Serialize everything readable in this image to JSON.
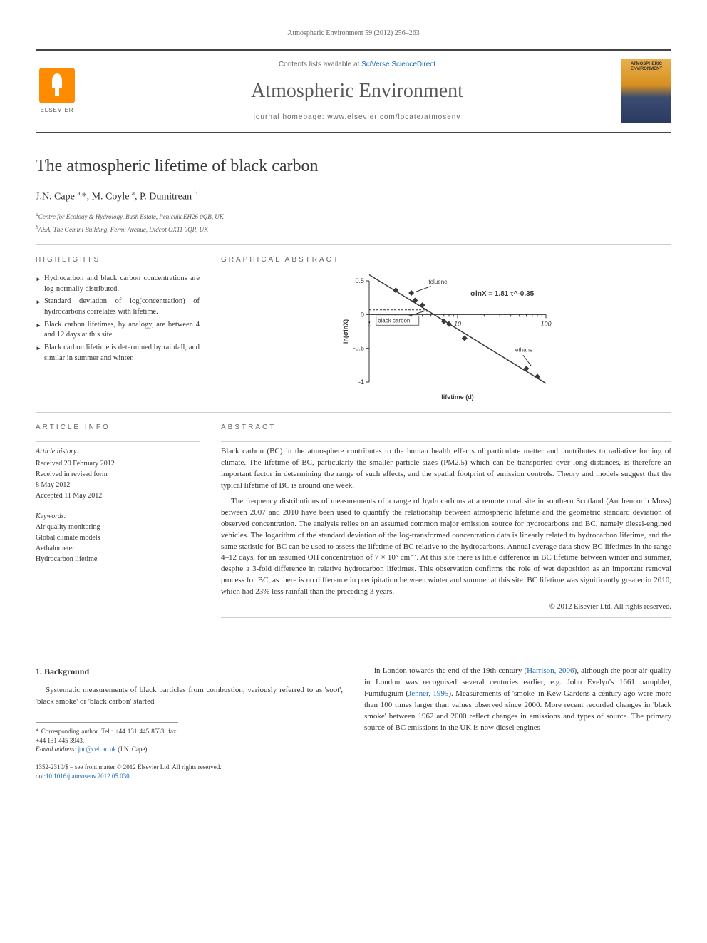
{
  "citation": "Atmospheric Environment 59 (2012) 256–263",
  "header": {
    "contents_text": "Contents lists available at ",
    "contents_link": "SciVerse ScienceDirect",
    "journal": "Atmospheric Environment",
    "homepage_label": "journal homepage: ",
    "homepage_url": "www.elsevier.com/locate/atmosenv",
    "publisher": "ELSEVIER",
    "cover_text": "ATMOSPHERIC ENVIRONMENT"
  },
  "paper": {
    "title": "The atmospheric lifetime of black carbon",
    "authors_html": "J.N. Cape <sup>a,</sup>*, M. Coyle <sup>a</sup>, P. Dumitrean <sup>b</sup>",
    "affiliations": [
      "Centre for Ecology & Hydrology, Bush Estate, Penicuik EH26 0QB, UK",
      "AEA, The Gemini Building, Fermi Avenue, Didcot OX11 0QR, UK"
    ],
    "affiliation_sup": [
      "a",
      "b"
    ]
  },
  "highlights": {
    "label": "HIGHLIGHTS",
    "items": [
      "Hydrocarbon and black carbon concentrations are log-normally distributed.",
      "Standard deviation of log(concentration) of hydrocarbons correlates with lifetime.",
      "Black carbon lifetimes, by analogy, are between 4 and 12 days at this site.",
      "Black carbon lifetime is determined by rainfall, and similar in summer and winter."
    ]
  },
  "graphical_abstract": {
    "label": "GRAPHICAL ABSTRACT",
    "chart": {
      "type": "scatter-line-loglinear",
      "xlabel": "lifetime (d)",
      "ylabel": "ln(σlnX)",
      "xlim": [
        1,
        100
      ],
      "xscale": "log",
      "xticks": [
        1,
        10,
        100
      ],
      "ylim": [
        -1.0,
        0.5
      ],
      "yticks": [
        -1.0,
        -0.5,
        0,
        0.5
      ],
      "annotation_eq": "σlnX = 1.81 τ^-0.35",
      "annotation_points": [
        {
          "label": "toluene",
          "x": 3.2,
          "y": 0.32
        },
        {
          "label": "black carbon",
          "x": 1.6,
          "y": -0.05
        },
        {
          "label": "ethane",
          "x": 70,
          "y": -0.75
        }
      ],
      "data_points": [
        {
          "x": 2.0,
          "y": 0.36
        },
        {
          "x": 3.0,
          "y": 0.32
        },
        {
          "x": 3.3,
          "y": 0.21
        },
        {
          "x": 4.0,
          "y": 0.14
        },
        {
          "x": 7.0,
          "y": -0.1
        },
        {
          "x": 8.0,
          "y": -0.14
        },
        {
          "x": 12.0,
          "y": -0.35
        },
        {
          "x": 60.0,
          "y": -0.8
        },
        {
          "x": 80.0,
          "y": -0.92
        }
      ],
      "line": {
        "x1": 1.0,
        "y1": 0.59,
        "x2": 100,
        "y2": -1.02
      },
      "marker_style": "diamond",
      "marker_fill": "#3a3a3a",
      "line_color": "#3a3a3a",
      "text_color": "#3a3a3a",
      "axis_color": "#333333",
      "font_family": "Arial",
      "font_size_pt": 8
    }
  },
  "article_info": {
    "label": "ARTICLE INFO",
    "history_head": "Article history:",
    "history": [
      "Received 20 February 2012",
      "Received in revised form",
      "8 May 2012",
      "Accepted 11 May 2012"
    ],
    "keywords_head": "Keywords:",
    "keywords": [
      "Air quality monitoring",
      "Global climate models",
      "Aethalometer",
      "Hydrocarbon lifetime"
    ]
  },
  "abstract": {
    "label": "ABSTRACT",
    "paragraphs": [
      "Black carbon (BC) in the atmosphere contributes to the human health effects of particulate matter and contributes to radiative forcing of climate. The lifetime of BC, particularly the smaller particle sizes (PM2.5) which can be transported over long distances, is therefore an important factor in determining the range of such effects, and the spatial footprint of emission controls. Theory and models suggest that the typical lifetime of BC is around one week.",
      "The frequency distributions of measurements of a range of hydrocarbons at a remote rural site in southern Scotland (Auchencorth Moss) between 2007 and 2010 have been used to quantify the relationship between atmospheric lifetime and the geometric standard deviation of observed concentration. The analysis relies on an assumed common major emission source for hydrocarbons and BC, namely diesel-engined vehicles. The logarithm of the standard deviation of the log-transformed concentration data is linearly related to hydrocarbon lifetime, and the same statistic for BC can be used to assess the lifetime of BC relative to the hydrocarbons. Annual average data show BC lifetimes in the range 4–12 days, for an assumed OH concentration of 7 × 10⁵ cm⁻³. At this site there is little difference in BC lifetime between winter and summer, despite a 3-fold difference in relative hydrocarbon lifetimes. This observation confirms the role of wet deposition as an important removal process for BC, as there is no difference in precipitation between winter and summer at this site. BC lifetime was significantly greater in 2010, which had 23% less rainfall than the preceding 3 years."
    ],
    "copyright": "© 2012 Elsevier Ltd. All rights reserved."
  },
  "body": {
    "section_number": "1.",
    "section_title": "Background",
    "col1": "Systematic measurements of black particles from combustion, variously referred to as 'soot', 'black smoke' or 'black carbon' started",
    "col2_part1": "in London towards the end of the 19th century (",
    "col2_link1": "Harrison, 2006",
    "col2_part2": "), although the poor air quality in London was recognised several centuries earlier, e.g. John Evelyn's 1661 pamphlet, Fumifugium (",
    "col2_link2": "Jenner, 1995",
    "col2_part3": "). Measurements of 'smoke' in Kew Gardens a century ago were more than 100 times larger than values observed since 2000. More recent recorded changes in 'black smoke' between 1962 and 2000 reflect changes in emissions and types of source. The primary source of BC emissions in the UK is now diesel engines"
  },
  "footer": {
    "corresponding": "* Corresponding author. Tel.: +44 131 445 8533; fax: +44 131 445 3943.",
    "email_label": "E-mail address: ",
    "email": "jnc@ceh.ac.uk",
    "email_suffix": " (J.N. Cape).",
    "front_matter": "1352-2310/$ – see front matter © 2012 Elsevier Ltd. All rights reserved.",
    "doi_label": "doi:",
    "doi": "10.1016/j.atmosenv.2012.05.030"
  }
}
